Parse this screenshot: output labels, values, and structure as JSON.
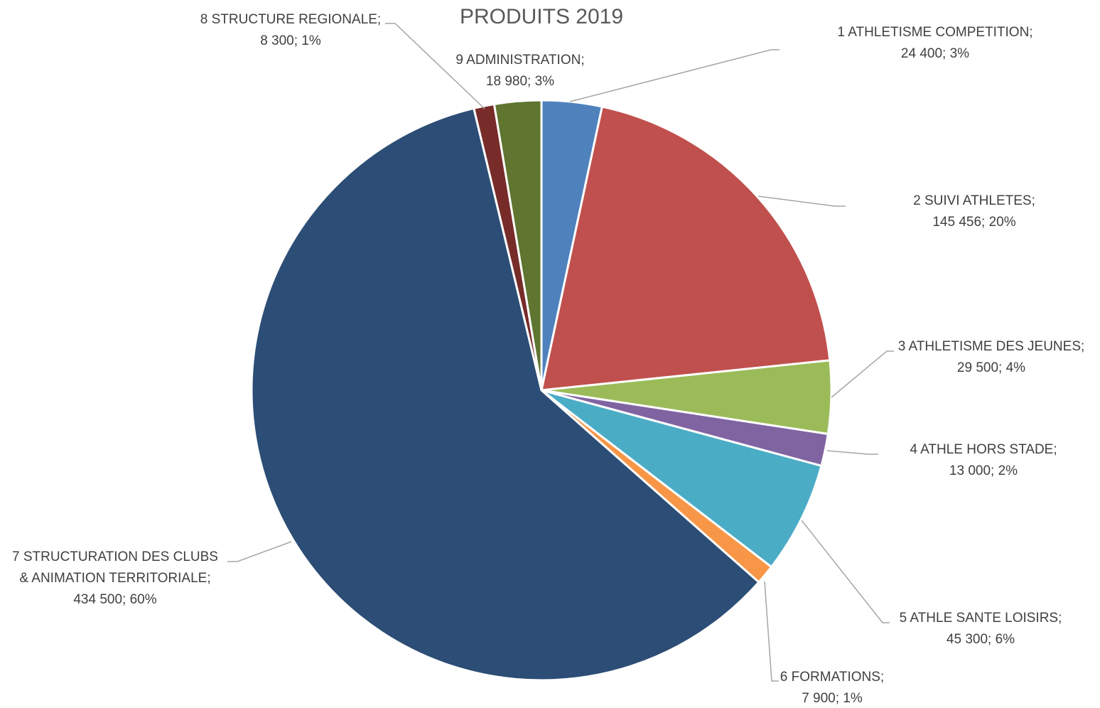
{
  "chart_data": {
    "type": "pie",
    "title": "PRODUITS 2019",
    "slices": [
      {
        "label_lines": [
          "1 ATHLETISME COMPETITION;",
          "24 400; 3%"
        ],
        "category": "1 ATHLETISME COMPETITION",
        "value": 24400,
        "percent": 3,
        "color": "#4f81bd"
      },
      {
        "label_lines": [
          "2 SUIVI ATHLETES;",
          "145 456; 20%"
        ],
        "category": "2 SUIVI ATHLETES",
        "value": 145456,
        "percent": 20,
        "color": "#c0504d"
      },
      {
        "label_lines": [
          "3 ATHLETISME DES JEUNES;",
          "29 500; 4%"
        ],
        "category": "3 ATHLETISME DES JEUNES",
        "value": 29500,
        "percent": 4,
        "color": "#9bbb59"
      },
      {
        "label_lines": [
          "4 ATHLE HORS STADE;",
          "13 000; 2%"
        ],
        "category": "4 ATHLE HORS STADE",
        "value": 13000,
        "percent": 2,
        "color": "#8064a2"
      },
      {
        "label_lines": [
          "5 ATHLE SANTE LOISIRS;",
          "45 300; 6%"
        ],
        "category": "5 ATHLE SANTE LOISIRS",
        "value": 45300,
        "percent": 6,
        "color": "#4bacc6"
      },
      {
        "label_lines": [
          "6 FORMATIONS;",
          "7 900; 1%"
        ],
        "category": "6 FORMATIONS",
        "value": 7900,
        "percent": 1,
        "color": "#f79646"
      },
      {
        "label_lines": [
          "7  STRUCTURATION DES CLUBS",
          "& ANIMATION TERRITORIALE;",
          "434 500; 60%"
        ],
        "category": "7  STRUCTURATION DES CLUBS & ANIMATION TERRITORIALE",
        "value": 434500,
        "percent": 60,
        "color": "#2c4d75"
      },
      {
        "label_lines": [
          "8 STRUCTURE REGIONALE;",
          "8 300; 1%"
        ],
        "category": "8 STRUCTURE REGIONALE",
        "value": 8300,
        "percent": 1,
        "color": "#772c2a"
      },
      {
        "label_lines": [
          "9 ADMINISTRATION;",
          "18 980; 3%"
        ],
        "category": "9 ADMINISTRATION",
        "value": 18980,
        "percent": 3,
        "color": "#5f7530"
      }
    ],
    "legend": "none"
  }
}
